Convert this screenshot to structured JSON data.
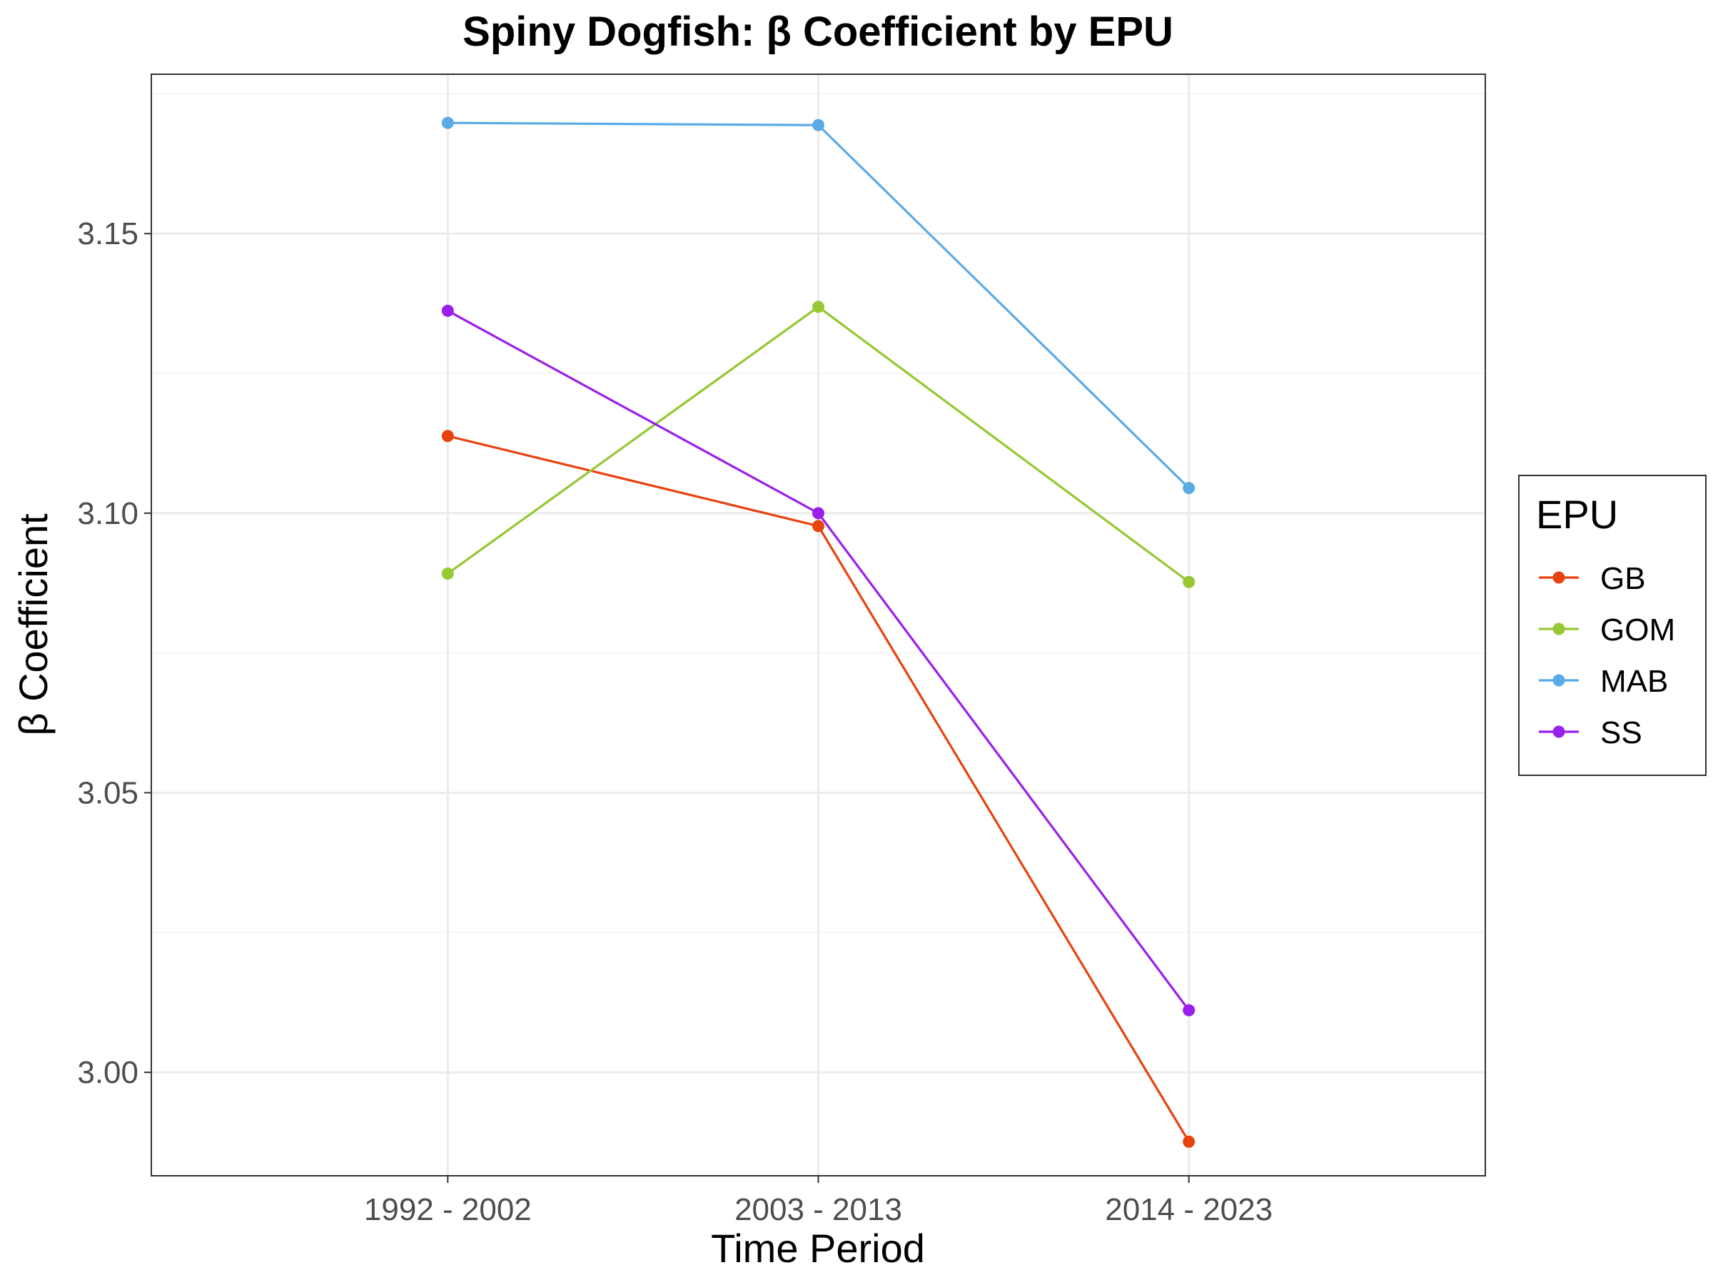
{
  "chart_data": {
    "type": "line",
    "title": "Spiny Dogfish: β Coefficient by EPU",
    "xlabel": "Time Period",
    "ylabel": "β Coefficient",
    "categories": [
      "1992 - 2002",
      "2003 - 2013",
      "2014 - 2023"
    ],
    "ylim": [
      2.9815,
      3.1785
    ],
    "yticks": [
      3.0,
      3.05,
      3.1,
      3.15
    ],
    "ytick_labels": [
      "3.00",
      "3.05",
      "3.10",
      "3.15"
    ],
    "grid": true,
    "legend": {
      "title": "EPU",
      "position": "right"
    },
    "series": [
      {
        "name": "GB",
        "color": "#E8420E",
        "values": [
          3.1138,
          3.0977,
          2.9876
        ]
      },
      {
        "name": "GOM",
        "color": "#95C832",
        "values": [
          3.0892,
          3.1369,
          3.0877
        ]
      },
      {
        "name": "MAB",
        "color": "#5AAAE6",
        "values": [
          3.1698,
          3.1694,
          3.1045
        ]
      },
      {
        "name": "SS",
        "color": "#9B1FEA",
        "values": [
          3.1362,
          3.1,
          3.0111
        ]
      }
    ]
  }
}
